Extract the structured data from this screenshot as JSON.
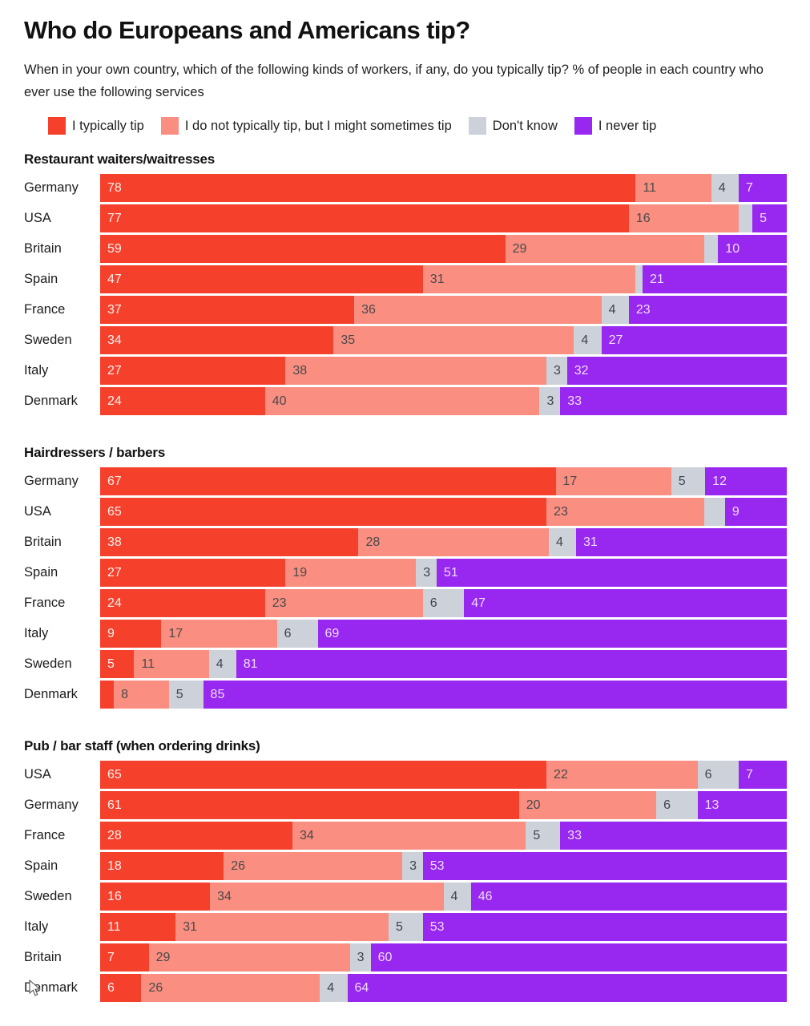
{
  "title": "Who do Europeans and Americans tip?",
  "subtitle": "When in your own country, which of the following kinds of workers, if any, do you typically tip? % of people in each country who ever use the following services",
  "legend": {
    "items": [
      {
        "label": "I typically tip",
        "color": "#f5402c"
      },
      {
        "label": "I do not typically tip, but I might sometimes tip",
        "color": "#f98e81"
      },
      {
        "label": "Don't know",
        "color": "#ccd1da"
      },
      {
        "label": "I never tip",
        "color": "#9827f0"
      }
    ]
  },
  "chart_data": {
    "type": "bar",
    "orientation": "horizontal",
    "stacked": true,
    "unit": "%",
    "xlim": [
      0,
      100
    ],
    "grid": false,
    "legend_position": "top",
    "series_names": [
      "I typically tip",
      "I do not typically tip, but I might sometimes tip",
      "Don't know",
      "I never tip"
    ],
    "series_colors": [
      "#f5402c",
      "#f98e81",
      "#ccd1da",
      "#9827f0"
    ],
    "segment_names": [
      "typically-tip",
      "might-sometimes-tip",
      "dont-know",
      "never-tip"
    ],
    "sections": [
      {
        "title": "Restaurant waiters/waitresses",
        "rows": [
          {
            "country": "Germany",
            "values": [
              78,
              11,
              4,
              7
            ],
            "labels": [
              "78",
              "11",
              "4",
              "7"
            ]
          },
          {
            "country": "USA",
            "values": [
              77,
              16,
              2,
              5
            ],
            "labels": [
              "77",
              "16",
              "",
              "5"
            ]
          },
          {
            "country": "Britain",
            "values": [
              59,
              29,
              2,
              10
            ],
            "labels": [
              "59",
              "29",
              "",
              "10"
            ]
          },
          {
            "country": "Spain",
            "values": [
              47,
              31,
              1,
              21
            ],
            "labels": [
              "47",
              "31",
              "",
              "21"
            ]
          },
          {
            "country": "France",
            "values": [
              37,
              36,
              4,
              23
            ],
            "labels": [
              "37",
              "36",
              "4",
              "23"
            ]
          },
          {
            "country": "Sweden",
            "values": [
              34,
              35,
              4,
              27
            ],
            "labels": [
              "34",
              "35",
              "4",
              "27"
            ]
          },
          {
            "country": "Italy",
            "values": [
              27,
              38,
              3,
              32
            ],
            "labels": [
              "27",
              "38",
              "3",
              "32"
            ]
          },
          {
            "country": "Denmark",
            "values": [
              24,
              40,
              3,
              33
            ],
            "labels": [
              "24",
              "40",
              "3",
              "33"
            ]
          }
        ]
      },
      {
        "title": "Hairdressers / barbers",
        "rows": [
          {
            "country": "Germany",
            "values": [
              67,
              17,
              5,
              12
            ],
            "labels": [
              "67",
              "17",
              "5",
              "12"
            ]
          },
          {
            "country": "USA",
            "values": [
              65,
              23,
              3,
              9
            ],
            "labels": [
              "65",
              "23",
              "",
              "9"
            ]
          },
          {
            "country": "Britain",
            "values": [
              38,
              28,
              4,
              31
            ],
            "labels": [
              "38",
              "28",
              "4",
              "31"
            ]
          },
          {
            "country": "Spain",
            "values": [
              27,
              19,
              3,
              51
            ],
            "labels": [
              "27",
              "19",
              "3",
              "51"
            ]
          },
          {
            "country": "France",
            "values": [
              24,
              23,
              6,
              47
            ],
            "labels": [
              "24",
              "23",
              "6",
              "47"
            ]
          },
          {
            "country": "Italy",
            "values": [
              9,
              17,
              6,
              69
            ],
            "labels": [
              "9",
              "17",
              "6",
              "69"
            ]
          },
          {
            "country": "Sweden",
            "values": [
              5,
              11,
              4,
              81
            ],
            "labels": [
              "5",
              "11",
              "4",
              "81"
            ]
          },
          {
            "country": "Denmark",
            "values": [
              2,
              8,
              5,
              85
            ],
            "labels": [
              "",
              "8",
              "5",
              "85"
            ]
          }
        ]
      },
      {
        "title": "Pub / bar staff (when ordering drinks)",
        "rows": [
          {
            "country": "USA",
            "values": [
              65,
              22,
              6,
              7
            ],
            "labels": [
              "65",
              "22",
              "6",
              "7"
            ]
          },
          {
            "country": "Germany",
            "values": [
              61,
              20,
              6,
              13
            ],
            "labels": [
              "61",
              "20",
              "6",
              "13"
            ]
          },
          {
            "country": "France",
            "values": [
              28,
              34,
              5,
              33
            ],
            "labels": [
              "28",
              "34",
              "5",
              "33"
            ]
          },
          {
            "country": "Spain",
            "values": [
              18,
              26,
              3,
              53
            ],
            "labels": [
              "18",
              "26",
              "3",
              "53"
            ]
          },
          {
            "country": "Sweden",
            "values": [
              16,
              34,
              4,
              46
            ],
            "labels": [
              "16",
              "34",
              "4",
              "46"
            ]
          },
          {
            "country": "Italy",
            "values": [
              11,
              31,
              5,
              53
            ],
            "labels": [
              "11",
              "31",
              "5",
              "53"
            ]
          },
          {
            "country": "Britain",
            "values": [
              7,
              29,
              3,
              60
            ],
            "labels": [
              "7",
              "29",
              "3",
              "60"
            ]
          },
          {
            "country": "Denmark",
            "values": [
              6,
              26,
              4,
              64
            ],
            "labels": [
              "6",
              "26",
              "4",
              "64"
            ]
          }
        ]
      }
    ]
  }
}
